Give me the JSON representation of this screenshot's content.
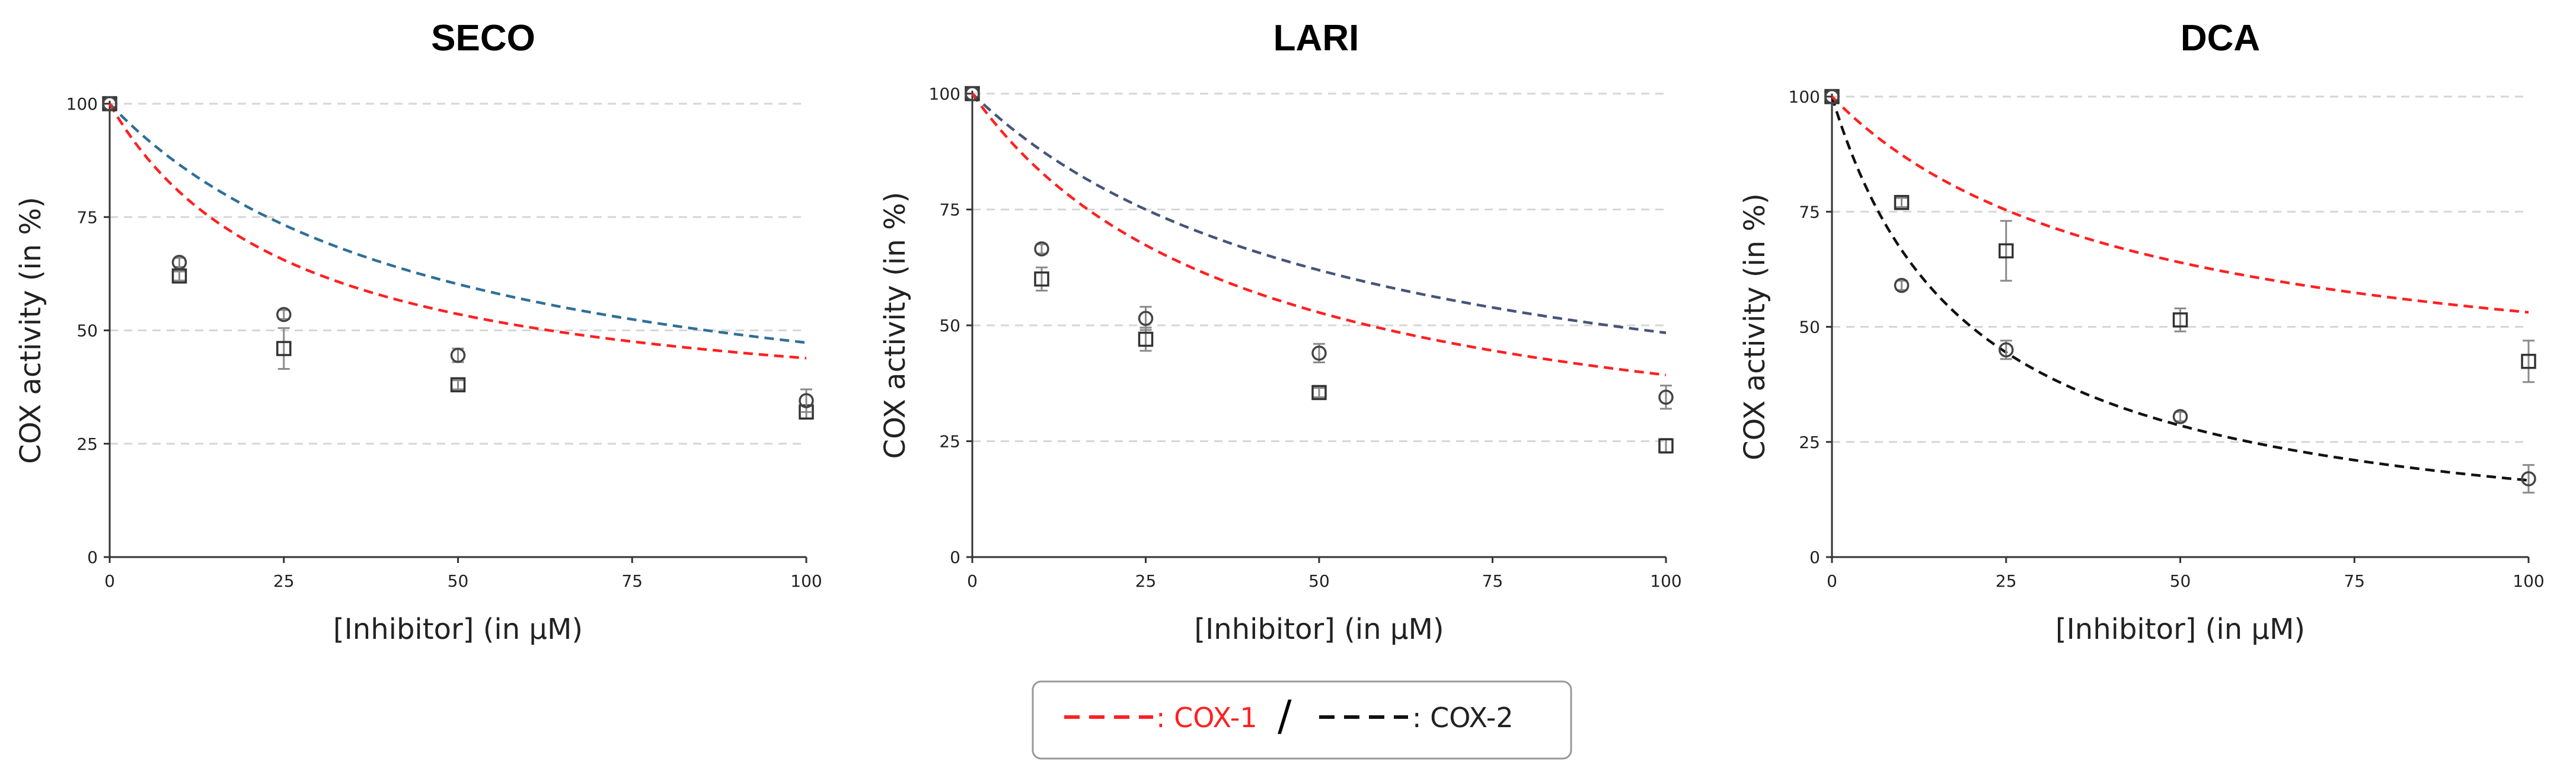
{
  "chart_data": [
    {
      "type": "scatter",
      "title": "SECO",
      "xlabel": "[Inhibitor] (in µM)",
      "ylabel": "COX activity (in %)",
      "xlim": [
        0,
        100
      ],
      "ylim": [
        0,
        100
      ],
      "xticks": [
        0,
        25,
        50,
        75,
        100
      ],
      "yticks": [
        0,
        25,
        50,
        75,
        100
      ],
      "grid": "horizontal dashed",
      "series": [
        {
          "name": "COX-1",
          "color": "#ff2020",
          "marker": "square",
          "x": [
            0,
            10,
            25,
            50,
            100
          ],
          "y": [
            100,
            62,
            46,
            38,
            32
          ],
          "err": [
            0,
            1,
            4.5,
            1,
            1.5
          ],
          "fit": {
            "bottom": 29,
            "k": 26.5
          }
        },
        {
          "name": "COX-2",
          "color": "#2f6f99",
          "marker": "circle",
          "x": [
            0,
            10,
            25,
            50,
            100
          ],
          "y": [
            100,
            65,
            53.5,
            44.5,
            34.5
          ],
          "err": [
            0,
            1,
            1,
            1.5,
            2.5
          ],
          "fit": {
            "bottom": 22,
            "k": 48
          }
        }
      ]
    },
    {
      "type": "scatter",
      "title": "LARI",
      "xlabel": "[Inhibitor] (in µM)",
      "ylabel": "COX activity (in %)",
      "xlim": [
        0,
        100
      ],
      "ylim": [
        0,
        100
      ],
      "xticks": [
        0,
        25,
        50,
        75,
        100
      ],
      "yticks": [
        0,
        25,
        50,
        75,
        100
      ],
      "grid": "horizontal dashed",
      "series": [
        {
          "name": "COX-1",
          "color": "#ff2020",
          "marker": "square",
          "x": [
            0,
            10,
            25,
            50,
            100
          ],
          "y": [
            100,
            60,
            47,
            35.5,
            24
          ],
          "err": [
            0,
            2.5,
            2.5,
            1,
            1.5
          ],
          "fit": {
            "bottom": 15,
            "k": 40
          }
        },
        {
          "name": "COX-2",
          "color": "#45557a",
          "marker": "circle",
          "x": [
            0,
            10,
            25,
            50,
            100
          ],
          "y": [
            100,
            66.5,
            51.5,
            44,
            34.5
          ],
          "err": [
            0,
            1,
            2.5,
            2,
            2.5
          ],
          "fit": {
            "bottom": 20,
            "k": 55
          }
        }
      ]
    },
    {
      "type": "scatter",
      "title": "DCA",
      "xlabel": "[Inhibitor] (in µM)",
      "ylabel": "COX activity (in %)",
      "xlim": [
        0,
        100
      ],
      "ylim": [
        0,
        100
      ],
      "xticks": [
        0,
        25,
        50,
        75,
        100
      ],
      "yticks": [
        0,
        25,
        50,
        75,
        100
      ],
      "grid": "horizontal dashed",
      "series": [
        {
          "name": "COX-1",
          "color": "#ff2020",
          "marker": "square",
          "x": [
            0,
            10,
            25,
            50,
            100
          ],
          "y": [
            100,
            77,
            66.5,
            51.5,
            42.5
          ],
          "err": [
            0,
            1,
            6.5,
            2.5,
            4.5
          ],
          "fit": {
            "bottom": 33,
            "k": 43
          }
        },
        {
          "name": "COX-2",
          "color": "#111111",
          "marker": "circle",
          "x": [
            0,
            10,
            25,
            50,
            100
          ],
          "y": [
            100,
            59,
            45,
            30.5,
            17
          ],
          "err": [
            0,
            1,
            2,
            1,
            3
          ],
          "fit": {
            "bottom": 0,
            "k": 20
          }
        }
      ]
    }
  ],
  "legend": {
    "items": [
      {
        "label": ": COX-1",
        "color": "#ff2020"
      },
      {
        "label": ": COX-2",
        "color": "#111111"
      }
    ],
    "separator": "/"
  }
}
